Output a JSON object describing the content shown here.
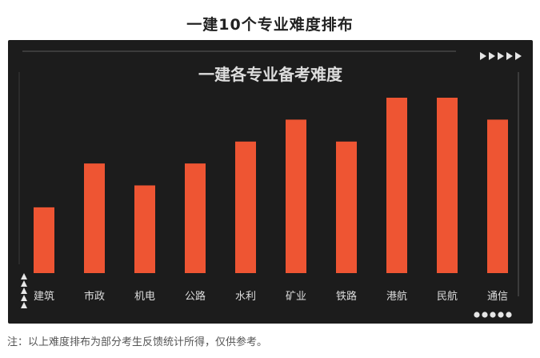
{
  "page": {
    "title": "一建10个专业难度排布",
    "footnote": "注：以上难度排布为部分考生反馈统计所得，仅供参考。"
  },
  "colors": {
    "bar": "#ee5533",
    "panel_background": "#1c1c1c",
    "text_light": "#dddddd"
  },
  "decorations": {
    "top_right_icon": "triangle-arrows-icon",
    "bottom_left_icon": "stacked-triangles-icon",
    "bottom_right_icon": "dots-icon"
  },
  "chart_data": {
    "type": "bar",
    "title": "一建各专业备考难度",
    "categories": [
      "建筑",
      "市政",
      "机电",
      "公路",
      "水利",
      "矿业",
      "铁路",
      "港航",
      "民航",
      "通信"
    ],
    "values": [
      3,
      5,
      4,
      5,
      6,
      7,
      6,
      8,
      8,
      7
    ],
    "ylim": [
      0,
      8
    ],
    "grid": false,
    "legend": "none",
    "xlabel": "",
    "ylabel": ""
  }
}
